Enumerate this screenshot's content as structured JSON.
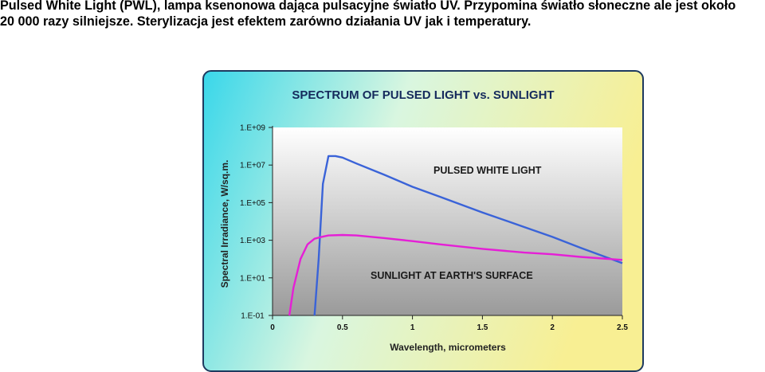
{
  "caption": {
    "line1": "Pulsed White Light (PWL), lampa ksenonowa dająca pulsacyjne światło UV. Przypomina światło słoneczne ale jest około",
    "line2": "20 000 razy silniejsze. Sterylizacja jest efektem zarówno działania UV jak i temperatury."
  },
  "chart_data": {
    "type": "line",
    "title": "SPECTRUM OF PULSED LIGHT vs. SUNLIGHT",
    "xlabel": "Wavelength, micrometers",
    "ylabel": "Spectral Irradiance, W/sq.m.",
    "xlim": [
      0,
      2.5
    ],
    "ylim": [
      0.1,
      1000000000
    ],
    "yscale": "log",
    "x_ticks": [
      "0",
      "0.5",
      "1",
      "1.5",
      "2",
      "2.5"
    ],
    "y_ticks": [
      "1.E-01",
      "1.E+01",
      "1.E+03",
      "1.E+05",
      "1.E+07",
      "1.E+09"
    ],
    "grid": false,
    "series": [
      {
        "name": "PULSED WHITE LIGHT",
        "color": "#3a63d8",
        "x": [
          0.3,
          0.33,
          0.36,
          0.4,
          0.45,
          0.5,
          0.6,
          0.8,
          1.0,
          1.2,
          1.5,
          1.8,
          2.0,
          2.2,
          2.5
        ],
        "y": [
          0.1,
          100,
          1000000,
          30000000,
          30000000,
          25000000,
          12000000,
          3000000,
          700000,
          200000,
          30000,
          5000,
          1500,
          400,
          60
        ]
      },
      {
        "name": "SUNLIGHT AT EARTH'S SURFACE",
        "color": "#e51fd6",
        "x": [
          0.12,
          0.15,
          0.2,
          0.25,
          0.3,
          0.35,
          0.4,
          0.5,
          0.6,
          0.8,
          1.0,
          1.2,
          1.5,
          1.8,
          2.0,
          2.2,
          2.5
        ],
        "y": [
          0.1,
          3,
          100,
          600,
          1200,
          1500,
          1800,
          1900,
          1800,
          1300,
          900,
          600,
          350,
          220,
          180,
          130,
          90
        ]
      }
    ]
  },
  "colors": {
    "frame_left": "#39d7ea",
    "frame_right": "#f8ef93",
    "plot_top": "#ffffff",
    "plot_bottom": "#9a9a9a"
  }
}
